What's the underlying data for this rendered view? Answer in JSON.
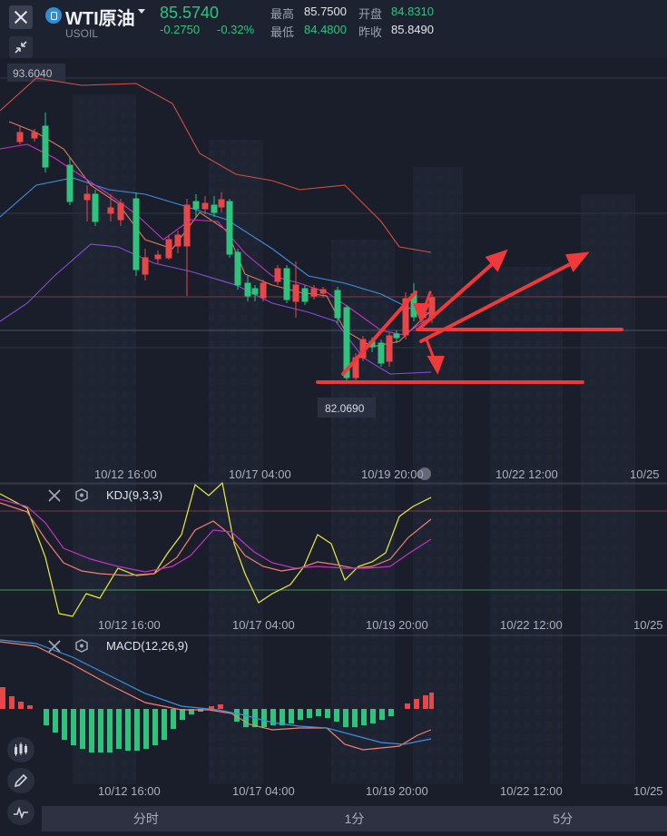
{
  "header": {
    "symbol": "WTI原油",
    "code": "USOIL",
    "price": "85.5740",
    "change": "-0.2750",
    "change_pct": "-0.32%",
    "stats": {
      "high_label": "最高",
      "high": "85.7500",
      "open_label": "开盘",
      "open": "84.8310",
      "low_label": "最低",
      "low": "84.4800",
      "prev_label": "昨收",
      "prev": "85.8490"
    }
  },
  "main_chart": {
    "top_price_label": "93.6040",
    "low_price_label": "82.0690",
    "x_labels": [
      "10/12 16:00",
      "10/17 04:00",
      "10/19 20:00",
      "10/22 12:00",
      "10/25"
    ]
  },
  "kdj": {
    "title": "KDJ(9,3,3)",
    "x_labels": [
      "10/12 16:00",
      "10/17 04:00",
      "10/19 20:00",
      "10/22 12:00",
      "10/25"
    ]
  },
  "macd": {
    "title": "MACD(12,26,9)",
    "x_labels": [
      "10/12 16:00",
      "10/17 04:00",
      "10/19 20:00",
      "10/22 12:00",
      "10/25"
    ]
  },
  "tabs": [
    "分时",
    "1分",
    "5分"
  ],
  "colors": {
    "up": "#e8474a",
    "down": "#2fc37e",
    "bg": "#1a1e2b",
    "accent": "#2d8fd6"
  },
  "icons": [
    "close-icon",
    "shrink-icon",
    "candle-type-icon",
    "draw-pen-icon",
    "indicator-icon",
    "settings-icon"
  ]
}
